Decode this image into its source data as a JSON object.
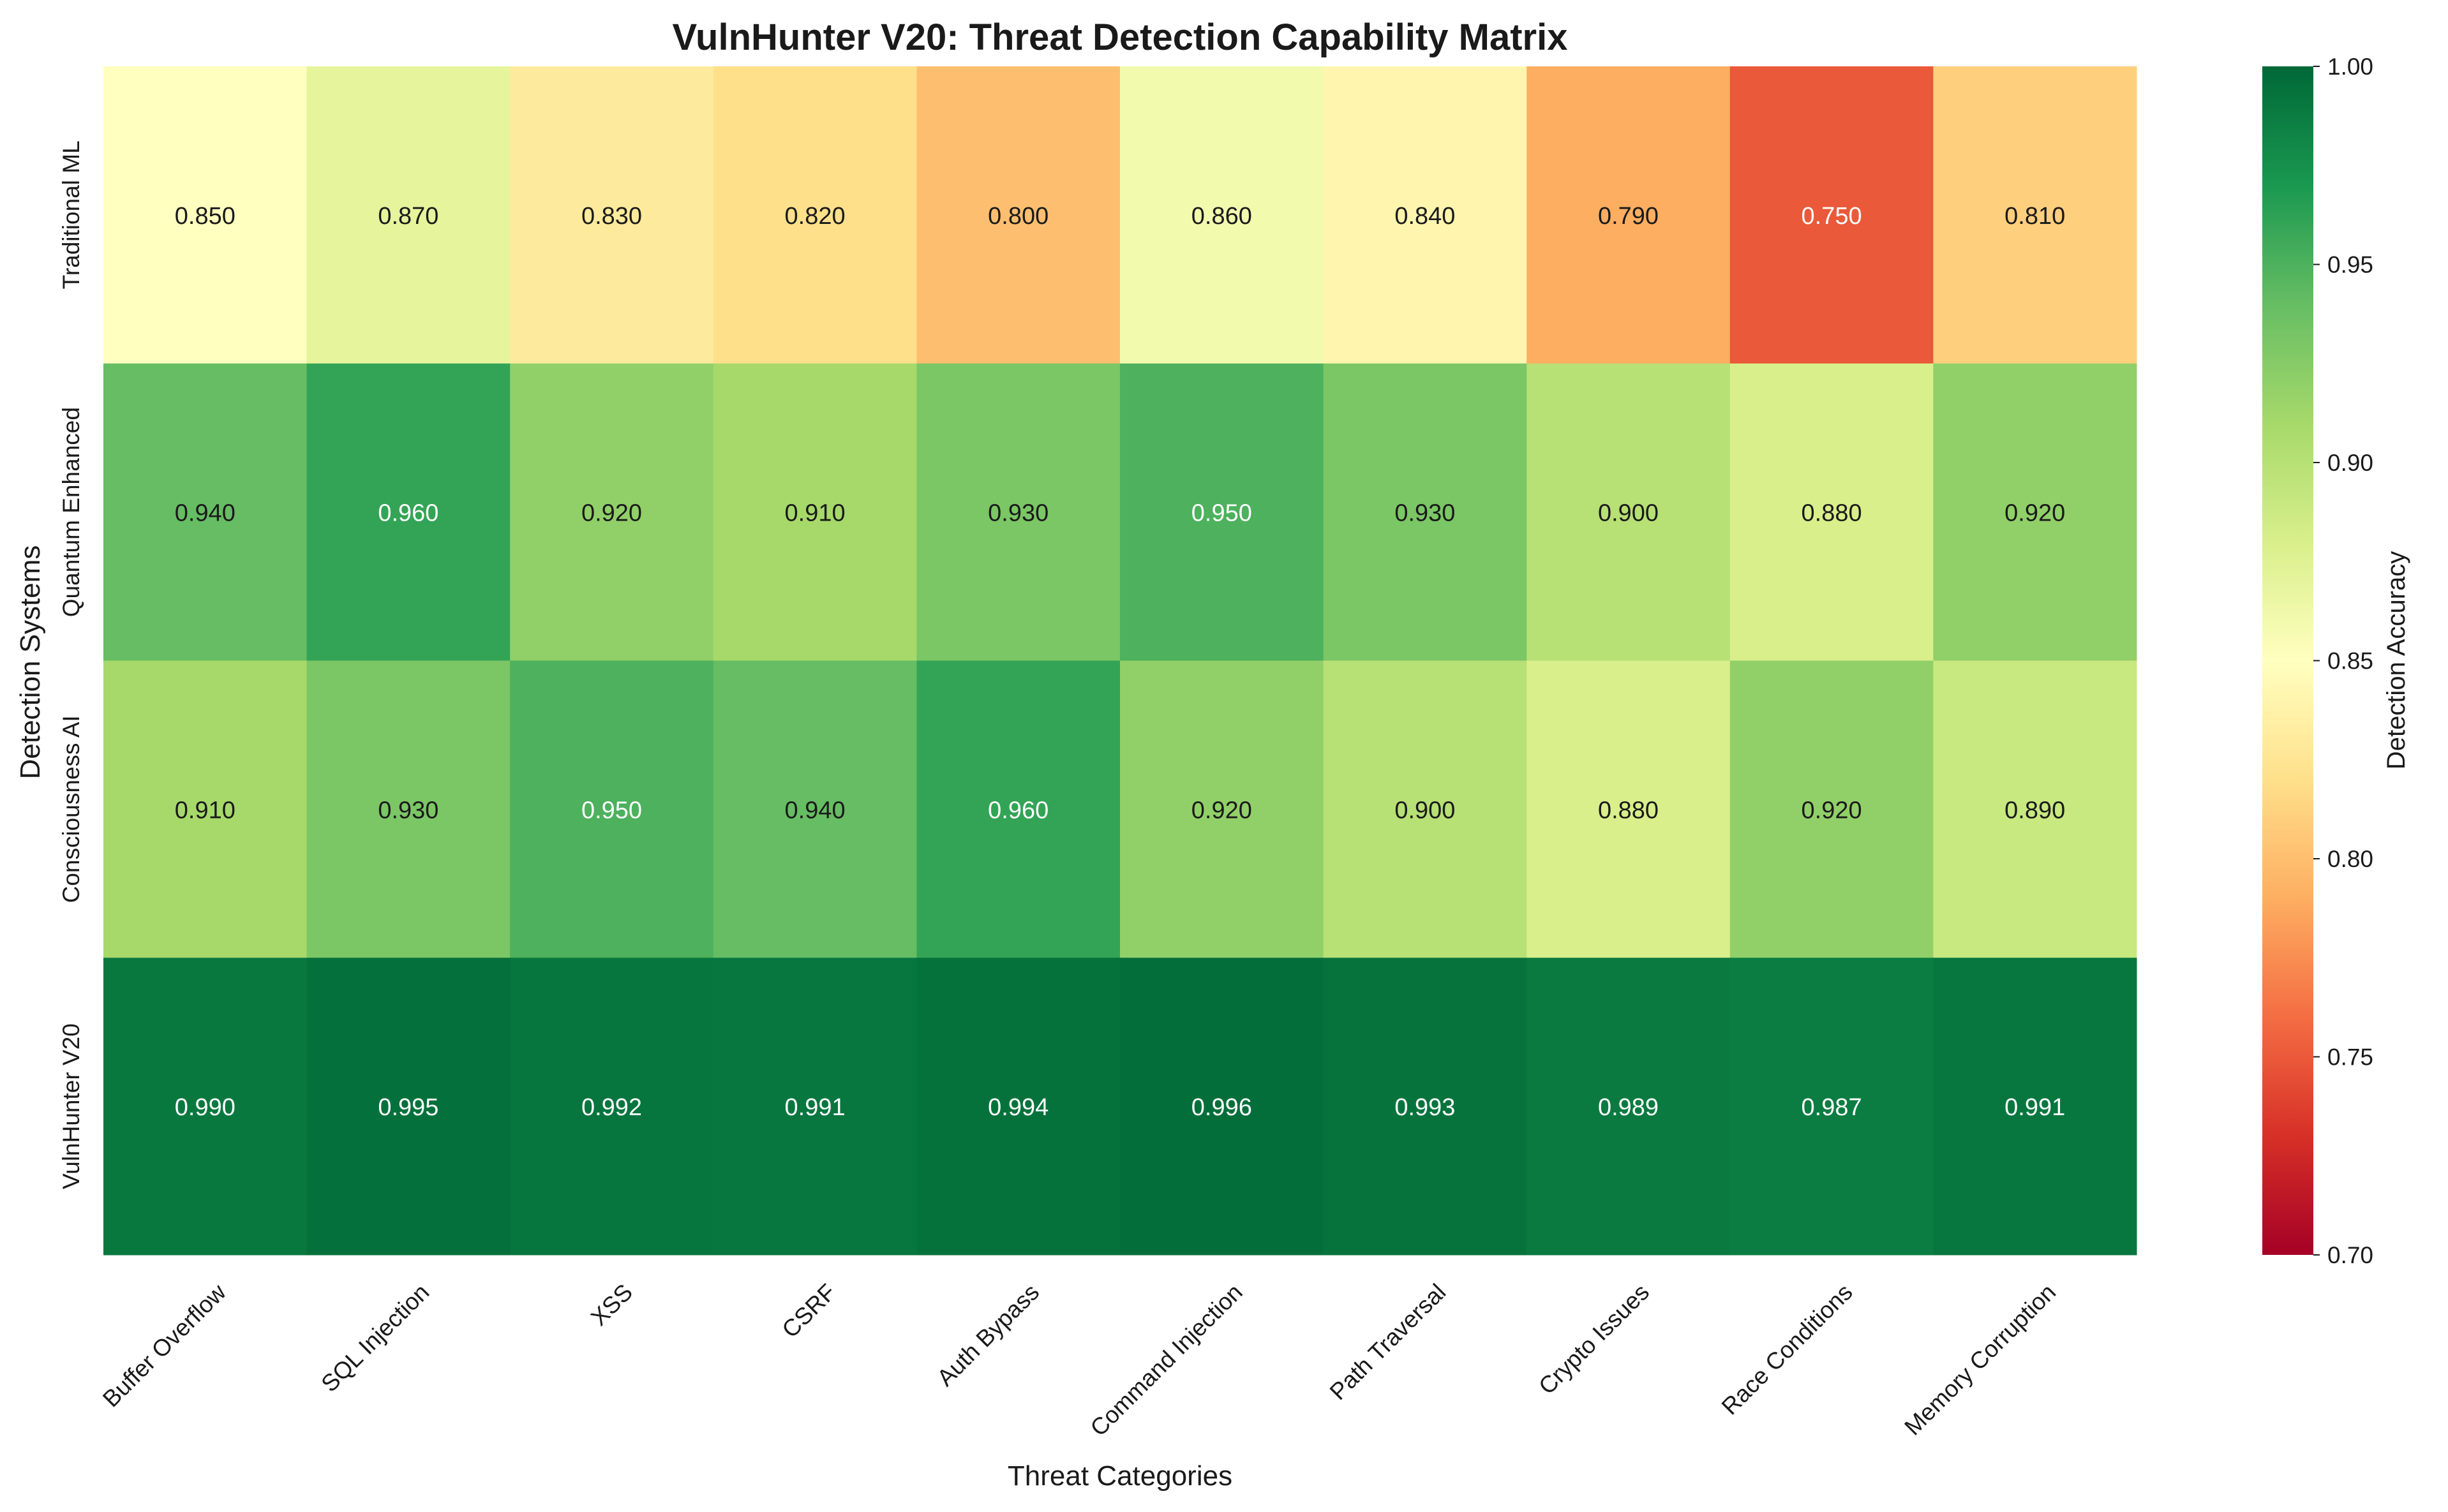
{
  "chart_data": {
    "type": "heatmap",
    "title": "VulnHunter V20: Threat Detection Capability Matrix",
    "xlabel": "Threat Categories",
    "ylabel": "Detection Systems",
    "colorbar_label": "Detection Accuracy",
    "colormap": "RdYlGn",
    "vmin": 0.7,
    "vmax": 1.0,
    "colorbar_ticks": [
      "0.70",
      "0.75",
      "0.80",
      "0.85",
      "0.90",
      "0.95",
      "1.00"
    ],
    "value_format": "3 decimals",
    "categories": [
      "Buffer Overflow",
      "SQL Injection",
      "XSS",
      "CSRF",
      "Auth Bypass",
      "Command Injection",
      "Path Traversal",
      "Crypto Issues",
      "Race Conditions",
      "Memory Corruption"
    ],
    "rows": [
      "Traditional ML",
      "Quantum Enhanced",
      "Consciousness AI",
      "VulnHunter V20"
    ],
    "values": [
      [
        0.85,
        0.87,
        0.83,
        0.82,
        0.8,
        0.86,
        0.84,
        0.79,
        0.75,
        0.81
      ],
      [
        0.94,
        0.96,
        0.92,
        0.91,
        0.93,
        0.95,
        0.93,
        0.9,
        0.88,
        0.92
      ],
      [
        0.91,
        0.93,
        0.95,
        0.94,
        0.96,
        0.92,
        0.9,
        0.88,
        0.92,
        0.89
      ],
      [
        0.99,
        0.995,
        0.992,
        0.991,
        0.994,
        0.996,
        0.993,
        0.989,
        0.987,
        0.991
      ]
    ]
  }
}
